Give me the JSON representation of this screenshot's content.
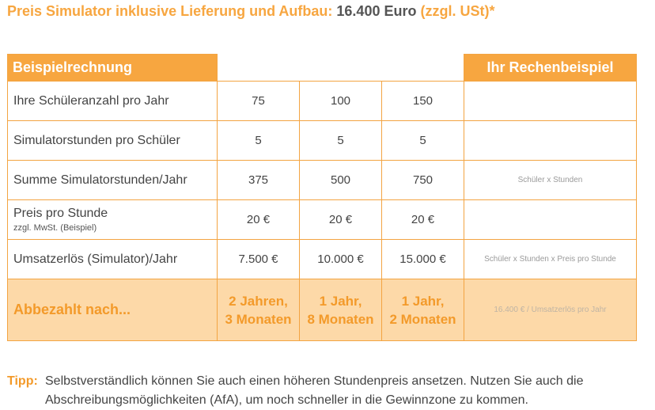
{
  "headline": {
    "text_orange_1": "Preis Simulator inklusive Lieferung und Aufbau:",
    "text_price": "16.400 Euro",
    "text_orange_2": "(zzgl. USt)*"
  },
  "table": {
    "header_left": "Beispielrechnung",
    "header_right": "Ihr Rechenbeispiel",
    "rows": [
      {
        "label": "Ihre Schüleranzahl pro Jahr",
        "sub": "",
        "values": [
          "75",
          "100",
          "150"
        ],
        "hint": ""
      },
      {
        "label": "Simulatorstunden pro Schüler",
        "sub": "",
        "values": [
          "5",
          "5",
          "5"
        ],
        "hint": ""
      },
      {
        "label": "Summe Simulatorstunden/Jahr",
        "sub": "",
        "values": [
          "375",
          "500",
          "750"
        ],
        "hint": "Schüler x Stunden"
      },
      {
        "label": "Preis pro Stunde",
        "sub": "zzgl. MwSt. (Beispiel)",
        "values": [
          "20 €",
          "20 €",
          "20 €"
        ],
        "hint": ""
      },
      {
        "label": "Umsatzerlös (Simulator)/Jahr",
        "sub": "",
        "values": [
          "7.500 €",
          "10.000 €",
          "15.000 €"
        ],
        "hint": "Schüler x Stunden x Preis pro Stunde"
      }
    ],
    "final": {
      "label": "Abbezahlt nach...",
      "values": [
        {
          "line1": "2 Jahren,",
          "line2": "3 Monaten"
        },
        {
          "line1": "1 Jahr,",
          "line2": "8 Monaten"
        },
        {
          "line1": "1 Jahr,",
          "line2": "2 Monaten"
        }
      ],
      "hint": "16.400 € / Umsatzerlös pro Jahr"
    }
  },
  "tipp": {
    "label": "Tipp:",
    "text": "Selbstverständlich können Sie auch einen höheren Stundenpreis ansetzen. Nutzen Sie auch die Abschreibungsmöglichkeiten (AfA), um noch schneller in die Gewinnzone zu kommen."
  },
  "colors": {
    "accent": "#f7a640",
    "final_row_bg": "#fdd9a8",
    "text": "#444444"
  }
}
